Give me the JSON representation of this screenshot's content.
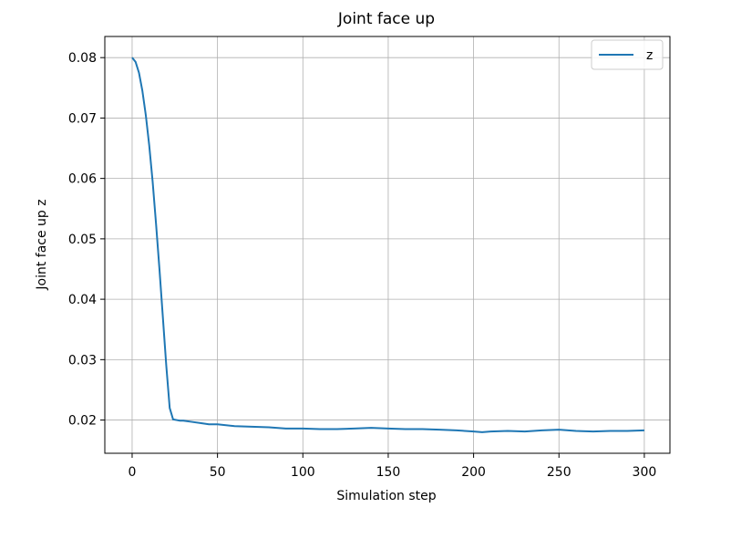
{
  "chart_data": {
    "type": "line",
    "title": "Joint face up",
    "xlabel": "Simulation step",
    "ylabel": "Joint face up z",
    "xlim": [
      -16,
      315
    ],
    "ylim": [
      0.0145,
      0.0835
    ],
    "xticks": [
      0,
      50,
      100,
      150,
      200,
      250,
      300
    ],
    "yticks": [
      0.02,
      0.03,
      0.04,
      0.05,
      0.06,
      0.07,
      0.08
    ],
    "xtick_labels": [
      "0",
      "50",
      "100",
      "150",
      "200",
      "250",
      "300"
    ],
    "ytick_labels": [
      "0.02",
      "0.03",
      "0.04",
      "0.05",
      "0.06",
      "0.07",
      "0.08"
    ],
    "grid": true,
    "legend_position": "top-right",
    "series": [
      {
        "name": "z",
        "color": "#1f77b4",
        "x": [
          0,
          2,
          4,
          6,
          8,
          10,
          12,
          14,
          16,
          18,
          20,
          22,
          24,
          26,
          28,
          30,
          35,
          40,
          45,
          50,
          60,
          70,
          80,
          90,
          100,
          110,
          120,
          130,
          140,
          150,
          160,
          170,
          180,
          190,
          200,
          205,
          210,
          220,
          230,
          240,
          250,
          260,
          270,
          280,
          290,
          300
        ],
        "y": [
          0.08,
          0.0793,
          0.0775,
          0.0745,
          0.0705,
          0.0655,
          0.0595,
          0.0525,
          0.045,
          0.037,
          0.029,
          0.022,
          0.0201,
          0.02,
          0.0199,
          0.0199,
          0.0197,
          0.0195,
          0.0193,
          0.0193,
          0.019,
          0.0189,
          0.0188,
          0.0186,
          0.0186,
          0.0185,
          0.0185,
          0.0186,
          0.0187,
          0.0186,
          0.0185,
          0.0185,
          0.0184,
          0.0183,
          0.0181,
          0.018,
          0.0181,
          0.0182,
          0.0181,
          0.0183,
          0.0184,
          0.0182,
          0.0181,
          0.0182,
          0.0182,
          0.0183
        ]
      }
    ]
  }
}
